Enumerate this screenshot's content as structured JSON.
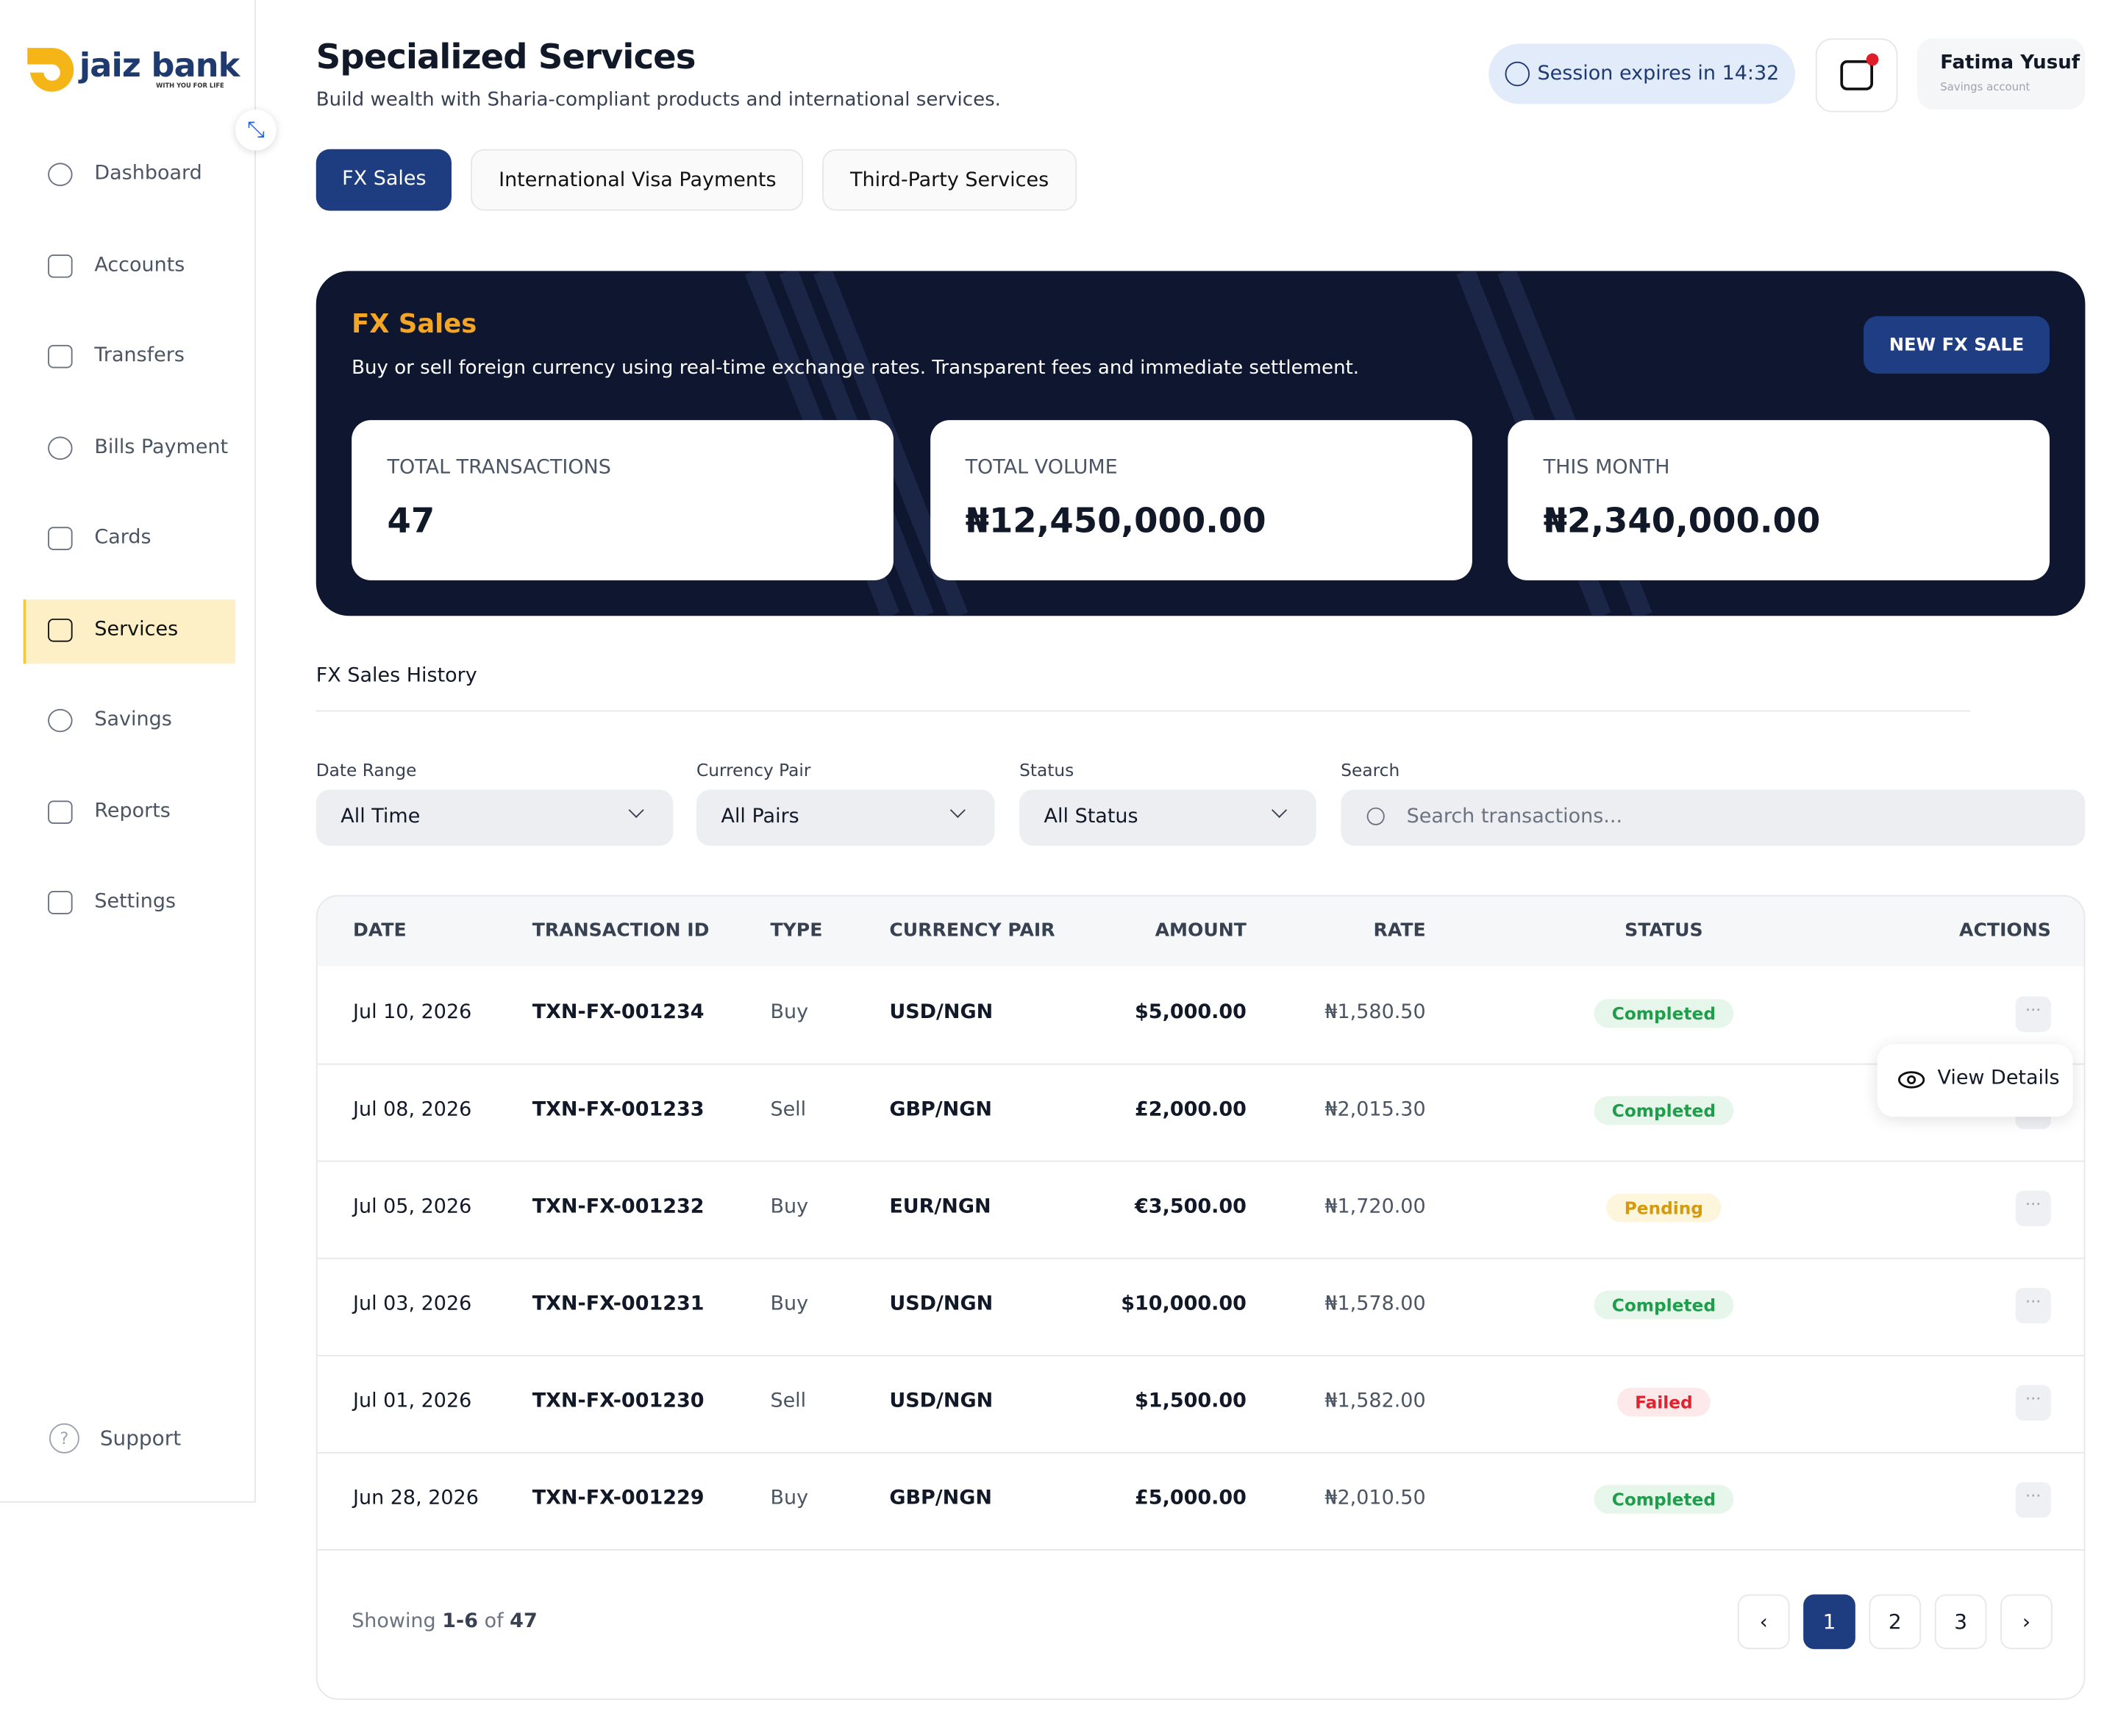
{
  "brand": {
    "name": "jaiz bank",
    "tagline": "WITH YOU FOR LIFE"
  },
  "nav": {
    "items": [
      "Dashboard",
      "Accounts",
      "Transfers",
      "Bills Payment",
      "Cards",
      "Services",
      "Savings",
      "Reports",
      "Settings"
    ],
    "active": 5,
    "support": "Support"
  },
  "header": {
    "title": "Specialized Services",
    "subtitle": "Build wealth with Sharia-compliant products and international services.",
    "session": "Session expires in 14:32",
    "user": {
      "name": "Fatima Yusuf",
      "account": "Savings account"
    }
  },
  "tabs": {
    "items": [
      "FX Sales",
      "International Visa Payments",
      "Third-Party Services"
    ],
    "active": 0
  },
  "banner": {
    "title": "FX Sales",
    "description": "Buy or sell foreign currency using real-time exchange rates. Transparent fees and immediate settlement.",
    "button": "NEW FX SALE",
    "stats": [
      {
        "label": "TOTAL TRANSACTIONS",
        "value": "47"
      },
      {
        "label": "TOTAL VOLUME",
        "value": "₦12,450,000.00"
      },
      {
        "label": "THIS MONTH",
        "value": "₦2,340,000.00"
      }
    ]
  },
  "history": {
    "title": "FX Sales History",
    "filters": [
      {
        "label": "Date Range",
        "value": "All Time"
      },
      {
        "label": "Currency Pair",
        "value": "All Pairs"
      },
      {
        "label": "Status",
        "value": "All Status"
      }
    ],
    "search": {
      "label": "Search",
      "placeholder": "Search transactions..."
    }
  },
  "table": {
    "columns": [
      "DATE",
      "TRANSACTION ID",
      "TYPE",
      "CURRENCY PAIR",
      "AMOUNT",
      "RATE",
      "STATUS",
      "ACTIONS"
    ],
    "rows": [
      {
        "date": "Jul 10, 2026",
        "id": "TXN-FX-001234",
        "type": "Buy",
        "pair": "USD/NGN",
        "amount": "$5,000.00",
        "rate": "₦1,580.50",
        "status": "Completed",
        "status_color": "#1e9e4a",
        "status_bg": "#e6f6ea"
      },
      {
        "date": "Jul 08, 2026",
        "id": "TXN-FX-001233",
        "type": "Sell",
        "pair": "GBP/NGN",
        "amount": "£2,000.00",
        "rate": "₦2,015.30",
        "status": "Completed",
        "status_color": "#1e9e4a",
        "status_bg": "#e6f6ea"
      },
      {
        "date": "Jul 05, 2026",
        "id": "TXN-FX-001232",
        "type": "Buy",
        "pair": "EUR/NGN",
        "amount": "€3,500.00",
        "rate": "₦1,720.00",
        "status": "Pending",
        "status_color": "#d49a0b",
        "status_bg": "#fdf5dc"
      },
      {
        "date": "Jul 03, 2026",
        "id": "TXN-FX-001231",
        "type": "Buy",
        "pair": "USD/NGN",
        "amount": "$10,000.00",
        "rate": "₦1,578.00",
        "status": "Completed",
        "status_color": "#1e9e4a",
        "status_bg": "#e6f6ea"
      },
      {
        "date": "Jul 01, 2026",
        "id": "TXN-FX-001230",
        "type": "Sell",
        "pair": "USD/NGN",
        "amount": "$1,500.00",
        "rate": "₦1,582.00",
        "status": "Failed",
        "status_color": "#e0242f",
        "status_bg": "#fde8ea"
      },
      {
        "date": "Jun 28, 2026",
        "id": "TXN-FX-001229",
        "type": "Buy",
        "pair": "GBP/NGN",
        "amount": "£5,000.00",
        "rate": "₦2,010.50",
        "status": "Completed",
        "status_color": "#1e9e4a",
        "status_bg": "#e6f6ea"
      }
    ],
    "action_menu": "View Details"
  },
  "pagination": {
    "prefix": "Showing",
    "range": "1-6",
    "of": "of",
    "total": "47",
    "pages": [
      "1",
      "2",
      "3"
    ],
    "active": 0
  }
}
